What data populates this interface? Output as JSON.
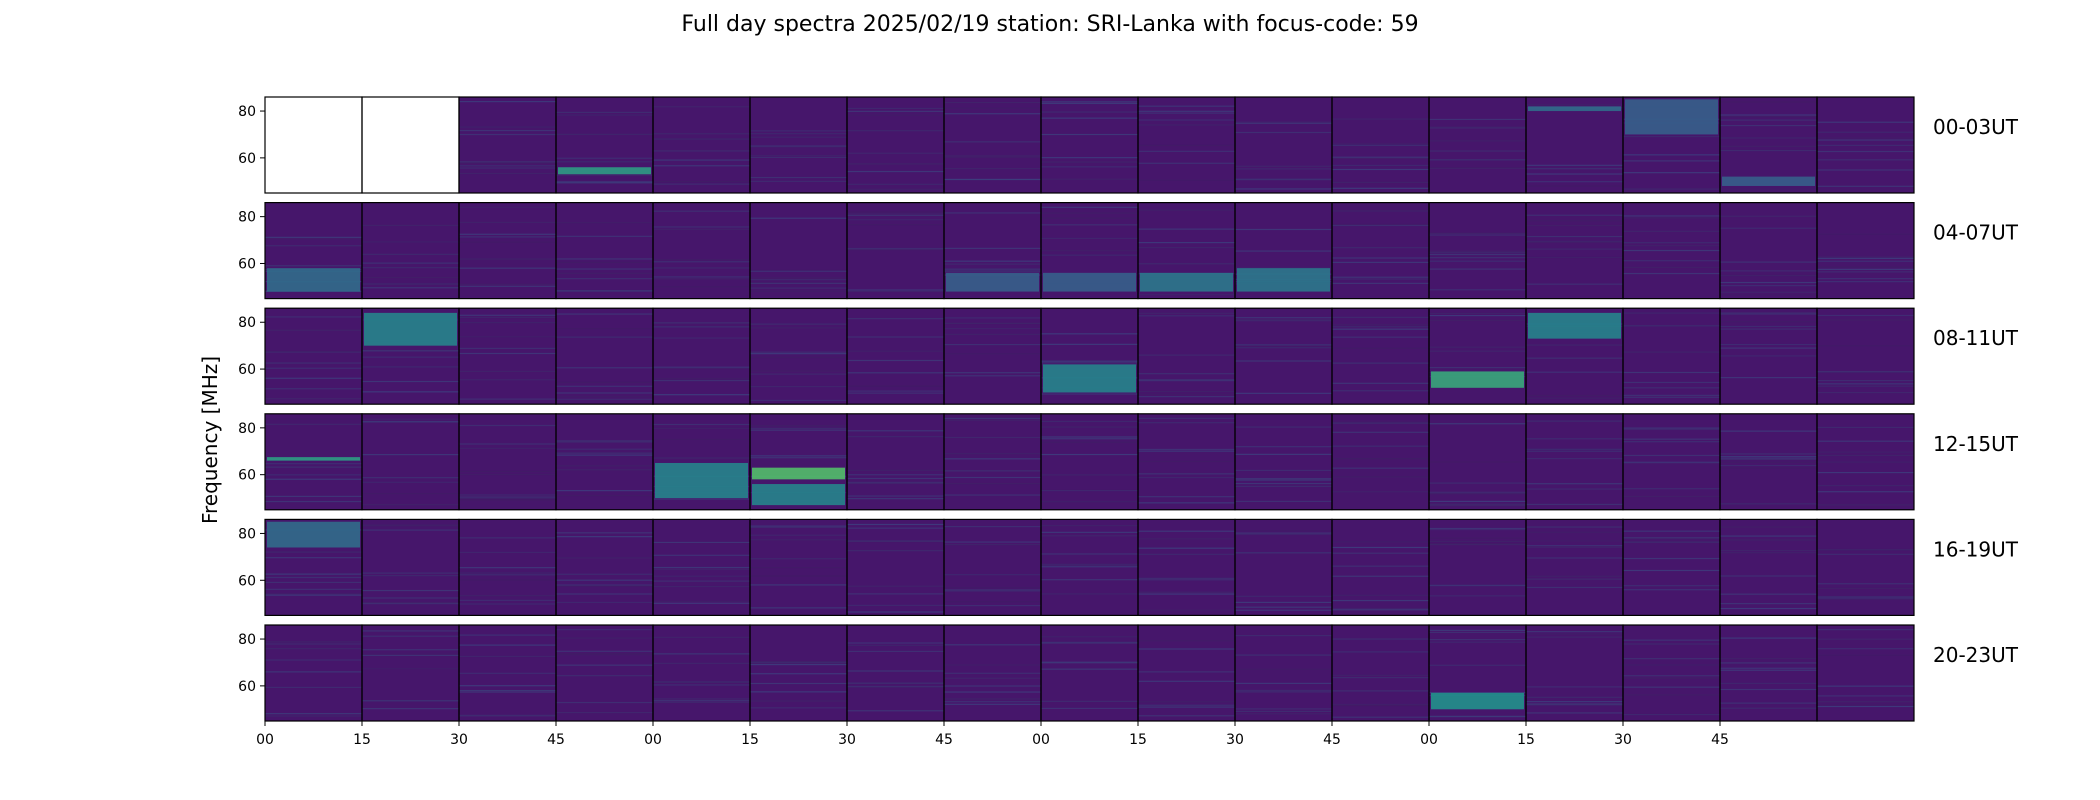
{
  "chart_data": {
    "type": "heatmap",
    "title": "Full day spectra 2025/02/19 station: SRI-Lanka with focus-code: 59",
    "ylabel": "Frequency [MHz]",
    "xlabel": "",
    "colormap": "viridis",
    "background_color": "#46166b",
    "ylim": [
      45,
      86
    ],
    "y_ticks": [
      "80",
      "60"
    ],
    "y_tick_values": [
      80,
      60
    ],
    "x_tick_labels": [
      "00",
      "15",
      "30",
      "45",
      "00",
      "15",
      "30",
      "45",
      "00",
      "15",
      "30",
      "45",
      "00",
      "15",
      "30",
      "45"
    ],
    "rows": [
      {
        "label": "00-03UT",
        "empty_panels": [
          0,
          1
        ],
        "features": [
          {
            "panel": 4,
            "fmin": 53,
            "fmax": 56,
            "intensity": 0.55
          },
          {
            "panel": 14,
            "fmin": 80,
            "fmax": 82,
            "intensity": 0.35
          },
          {
            "panel": 15,
            "fmin": 70,
            "fmax": 85,
            "intensity": 0.3
          },
          {
            "panel": 16,
            "fmin": 48,
            "fmax": 52,
            "intensity": 0.3
          }
        ]
      },
      {
        "label": "04-07UT",
        "empty_panels": [],
        "features": [
          {
            "panel": 1,
            "fmin": 48,
            "fmax": 58,
            "intensity": 0.35
          },
          {
            "panel": 8,
            "fmin": 48,
            "fmax": 56,
            "intensity": 0.3
          },
          {
            "panel": 9,
            "fmin": 48,
            "fmax": 56,
            "intensity": 0.3
          },
          {
            "panel": 10,
            "fmin": 48,
            "fmax": 56,
            "intensity": 0.4
          },
          {
            "panel": 11,
            "fmin": 48,
            "fmax": 58,
            "intensity": 0.4
          }
        ]
      },
      {
        "label": "08-11UT",
        "empty_panels": [],
        "features": [
          {
            "panel": 2,
            "fmin": 70,
            "fmax": 84,
            "intensity": 0.45
          },
          {
            "panel": 9,
            "fmin": 50,
            "fmax": 62,
            "intensity": 0.45
          },
          {
            "panel": 13,
            "fmin": 52,
            "fmax": 59,
            "intensity": 0.6
          },
          {
            "panel": 14,
            "fmin": 73,
            "fmax": 84,
            "intensity": 0.45
          }
        ]
      },
      {
        "label": "12-15UT",
        "empty_panels": [],
        "features": [
          {
            "panel": 1,
            "fmin": 66,
            "fmax": 67.5,
            "intensity": 0.55
          },
          {
            "panel": 5,
            "fmin": 50,
            "fmax": 65,
            "intensity": 0.45
          },
          {
            "panel": 6,
            "fmin": 58,
            "fmax": 63,
            "intensity": 0.7
          },
          {
            "panel": 6,
            "fmin": 47,
            "fmax": 56,
            "intensity": 0.45
          }
        ]
      },
      {
        "label": "16-19UT",
        "empty_panels": [],
        "features": [
          {
            "panel": 1,
            "fmin": 74,
            "fmax": 85,
            "intensity": 0.35
          }
        ]
      },
      {
        "label": "20-23UT",
        "empty_panels": [],
        "features": [
          {
            "panel": 13,
            "fmin": 50,
            "fmax": 57,
            "intensity": 0.5
          }
        ]
      }
    ]
  }
}
